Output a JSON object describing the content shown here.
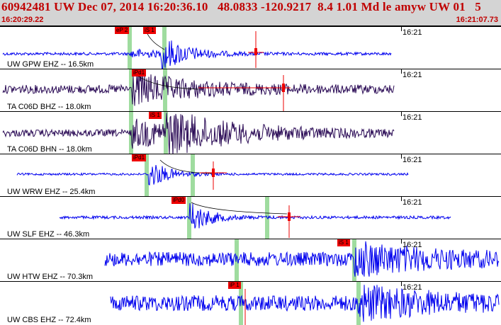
{
  "header": {
    "title": "60942481 UW Dec 07, 2014 16:20:36.10   48.0833 -120.9217  8.4 1.01 Md le amyw UW 01   5",
    "time_start": "16:20:29.22",
    "time_end": "16:21:07.73"
  },
  "colors": {
    "header_text": "#c00000",
    "trace_blue": "#0000ee",
    "trace_navy": "#2a0a55",
    "pick": "#ee0000",
    "arrival": "#9fdc9f"
  },
  "traces": [
    {
      "label": "UW GPW EHZ -- 16.5km",
      "time_mark": "16:21",
      "color": "blue",
      "picks": [
        "eP 2",
        "iS 1"
      ]
    },
    {
      "label": "TA C06D BHZ -- 18.0km",
      "time_mark": "16:21",
      "color": "navy",
      "picks": [
        "iPd1"
      ]
    },
    {
      "label": "TA C06D BHN -- 18.0km",
      "time_mark": "16:21",
      "color": "navy",
      "picks": [
        "iS 1"
      ]
    },
    {
      "label": "UW WRW EHZ -- 25.4km",
      "time_mark": "16:21",
      "color": "blue",
      "picks": [
        "iPd1"
      ]
    },
    {
      "label": "UW SLF EHZ -- 46.3km",
      "time_mark": "16:21",
      "color": "blue",
      "picks": [
        "iPd0"
      ]
    },
    {
      "label": "UW HTW EHZ -- 70.3km",
      "time_mark": "16:21",
      "color": "blue",
      "picks": [
        "iS 1"
      ]
    },
    {
      "label": "UW CBS EHZ -- 72.4km",
      "time_mark": "16:21",
      "color": "blue",
      "picks": [
        "iP 1"
      ]
    }
  ]
}
